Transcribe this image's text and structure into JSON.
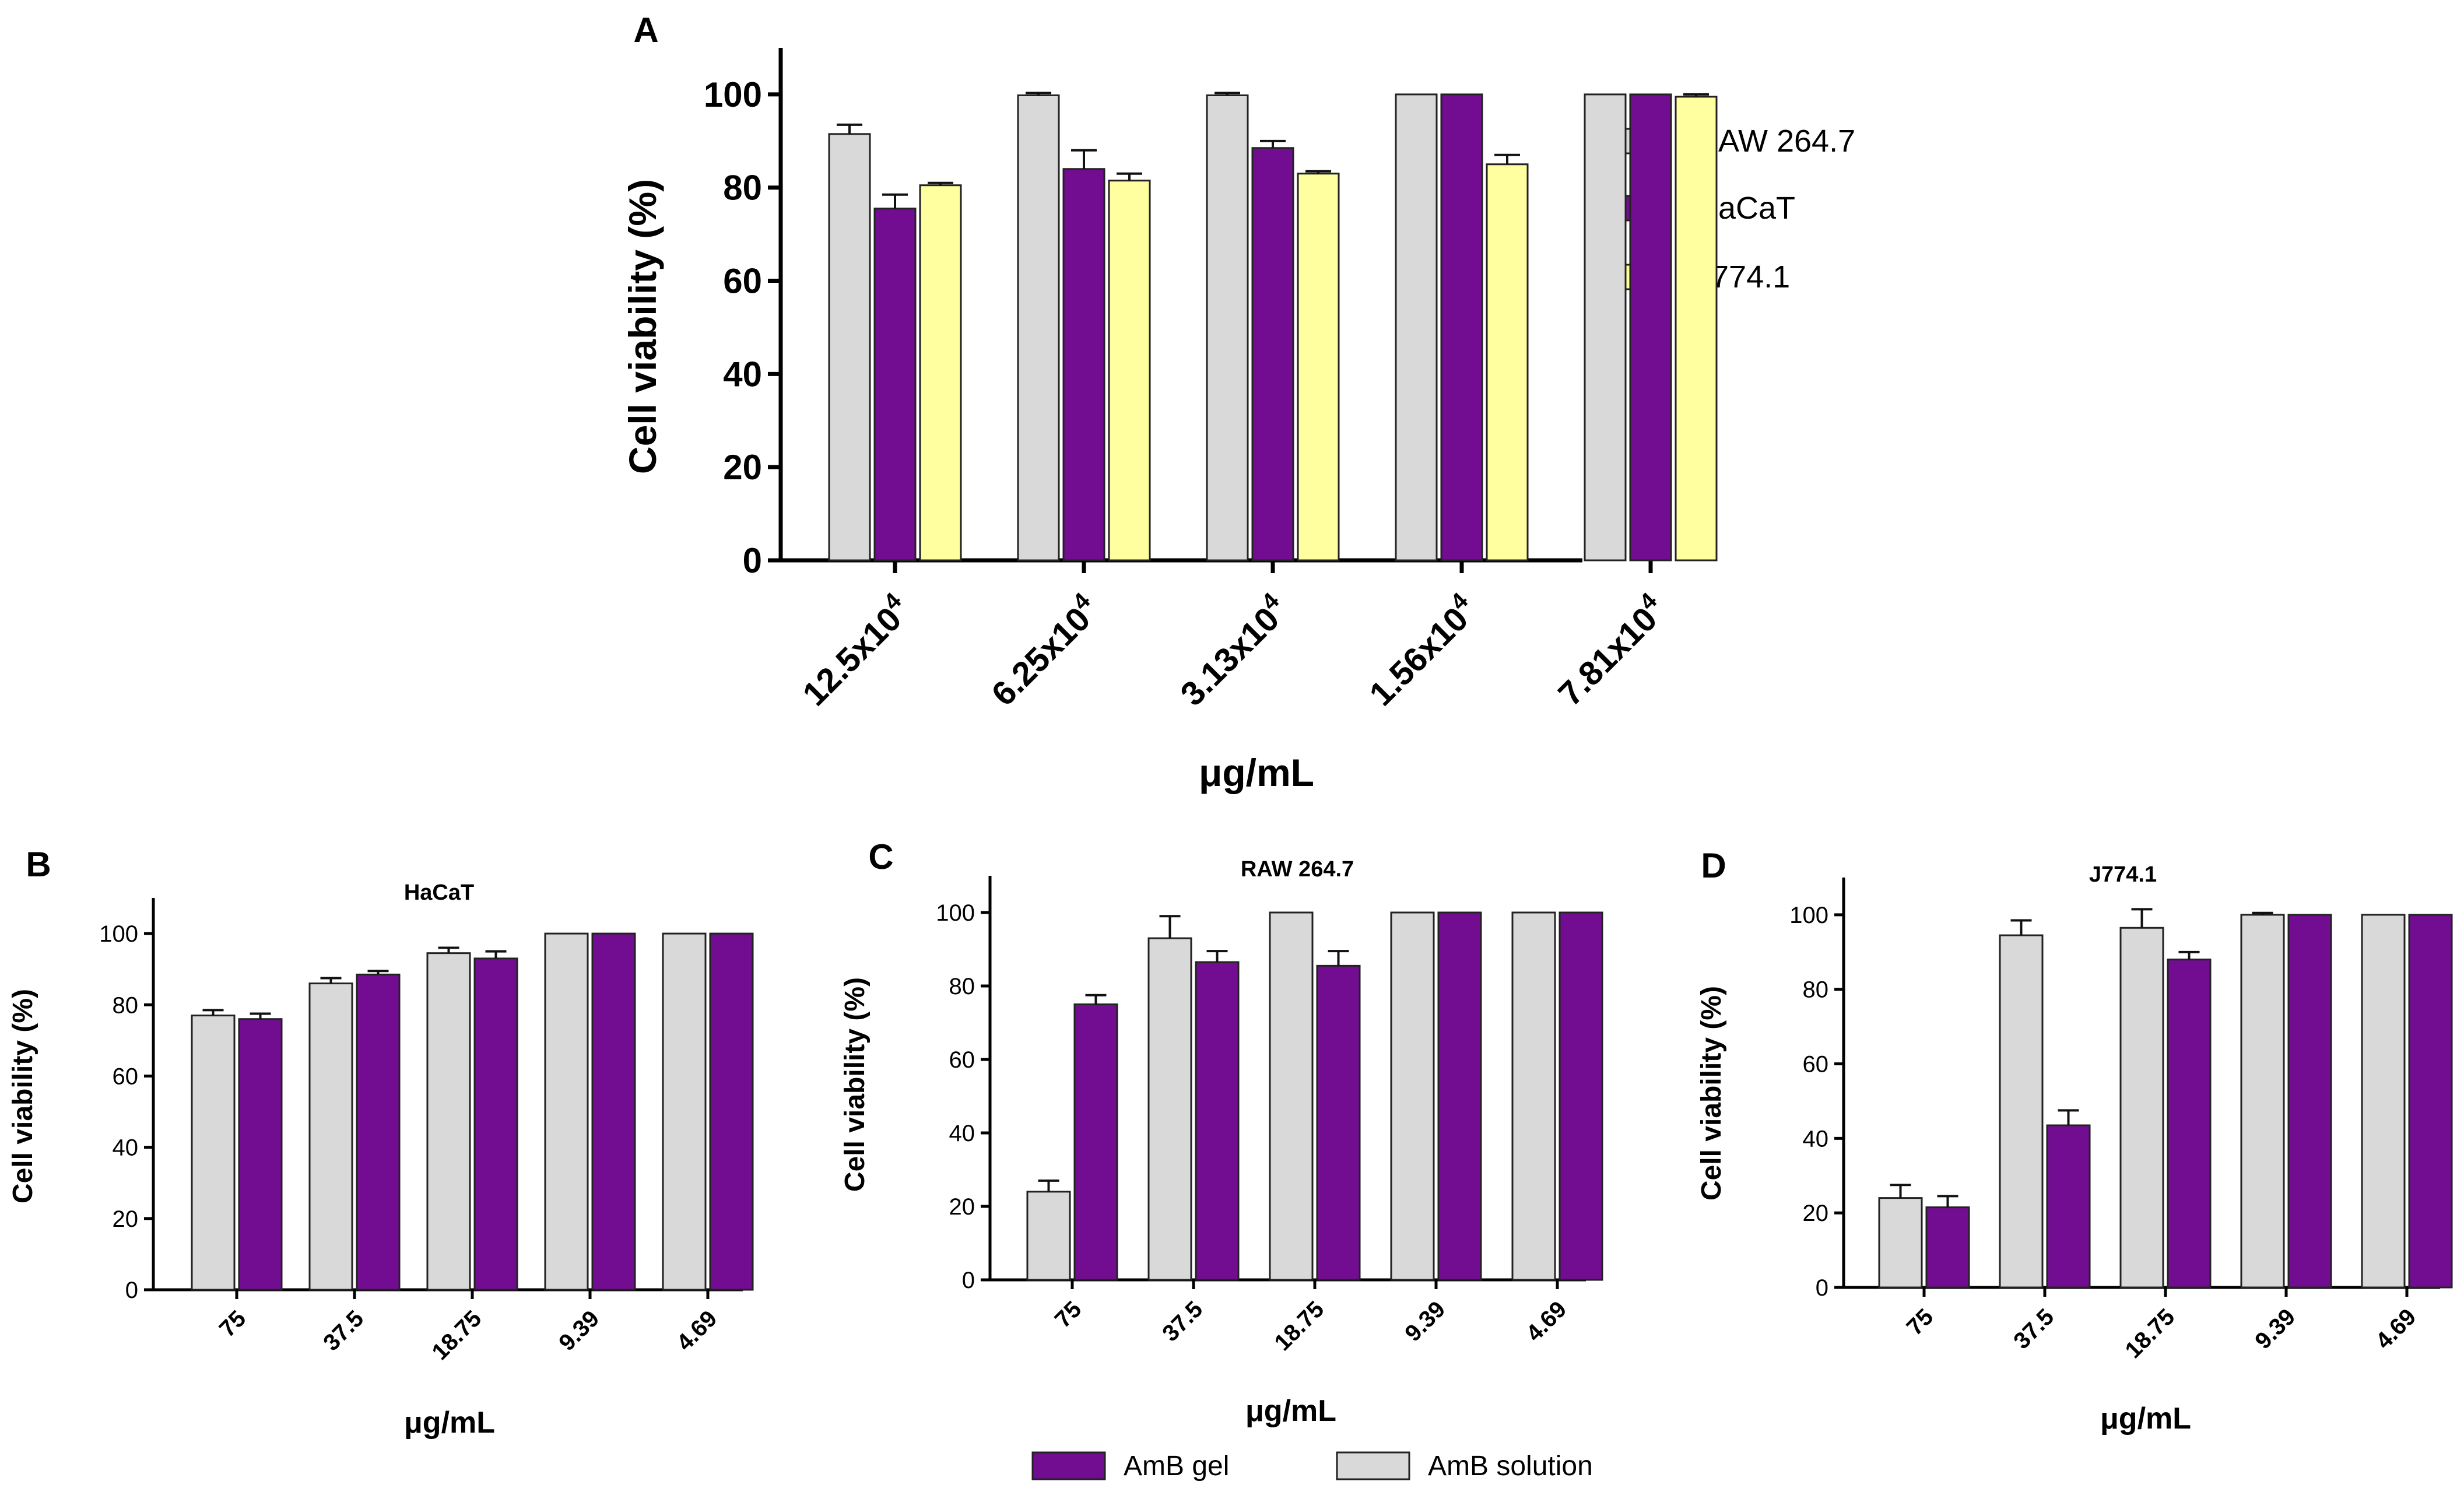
{
  "colors": {
    "raw": "#d9d9d9",
    "hacat": "#720d91",
    "j774": "#ffff9f",
    "gel": "#720d91",
    "solution": "#d9d9d9"
  },
  "panel_a": {
    "letter": "A",
    "legend": [
      "RAW 264.7",
      "HaCaT",
      "J774.1"
    ]
  },
  "bottom_legend": {
    "gel_label": "AmB gel",
    "solution_label": "AmB solution"
  },
  "chart_data": [
    {
      "id": "A",
      "type": "bar",
      "title": "",
      "xlabel": "μg/mL",
      "ylabel": "Cell viability (%)",
      "ylim": [
        0,
        110
      ],
      "yticks": [
        0,
        20,
        40,
        60,
        80,
        100
      ],
      "categories": [
        {
          "base": "12.5x10",
          "exp": "4"
        },
        {
          "base": "6.25x10",
          "exp": "4"
        },
        {
          "base": "3.13x10",
          "exp": "4"
        },
        {
          "base": "1.56x10",
          "exp": "4"
        },
        {
          "base": "7.81x10",
          "exp": "4"
        }
      ],
      "series": [
        {
          "name": "RAW 264.7",
          "values": [
            91.5,
            99.8,
            99.8,
            100,
            100
          ],
          "errors": [
            2.0,
            0.5,
            0.5,
            0,
            0
          ]
        },
        {
          "name": "HaCaT",
          "values": [
            75.5,
            84,
            88.5,
            100,
            100
          ],
          "errors": [
            3.0,
            4.0,
            1.5,
            0,
            0
          ]
        },
        {
          "name": "J774.1",
          "values": [
            80.5,
            81.5,
            83,
            85,
            99.5
          ],
          "errors": [
            0.5,
            1.5,
            0.5,
            2.0,
            0.5
          ]
        }
      ],
      "legend_position": "right"
    },
    {
      "id": "B",
      "type": "bar",
      "title": "HaCaT",
      "xlabel": "μg/mL",
      "ylabel": "Cell viability (%)",
      "ylim": [
        0,
        110
      ],
      "yticks": [
        0,
        20,
        40,
        60,
        80,
        100
      ],
      "categories": [
        "75",
        "37.5",
        "18.75",
        "9.39",
        "4.69"
      ],
      "series": [
        {
          "name": "AmB solution",
          "values": [
            77,
            86,
            94.5,
            100,
            100
          ],
          "errors": [
            1.5,
            1.5,
            1.5,
            0,
            0
          ]
        },
        {
          "name": "AmB gel",
          "values": [
            76,
            88.5,
            93,
            100,
            100
          ],
          "errors": [
            1.5,
            1.0,
            2.0,
            0,
            0
          ]
        }
      ]
    },
    {
      "id": "C",
      "type": "bar",
      "title": "RAW 264.7",
      "xlabel": "μg/mL",
      "ylabel": "Cell viability (%)",
      "ylim": [
        0,
        110
      ],
      "yticks": [
        0,
        20,
        40,
        60,
        80,
        100
      ],
      "categories": [
        "75",
        "37.5",
        "18.75",
        "9.39",
        "4.69"
      ],
      "series": [
        {
          "name": "AmB solution",
          "values": [
            24,
            93,
            100,
            100,
            100
          ],
          "errors": [
            3.0,
            6.0,
            0,
            0,
            0
          ]
        },
        {
          "name": "AmB gel",
          "values": [
            75,
            86.5,
            85.5,
            100,
            100
          ],
          "errors": [
            2.5,
            3.0,
            4.0,
            0,
            0
          ]
        }
      ]
    },
    {
      "id": "D",
      "type": "bar",
      "title": "J774.1",
      "xlabel": "μg/mL",
      "ylabel": "Cell viability (%)",
      "ylim": [
        0,
        110
      ],
      "yticks": [
        0,
        20,
        40,
        60,
        80,
        100
      ],
      "categories": [
        "75",
        "37.5",
        "18.75",
        "9.39",
        "4.69"
      ],
      "series": [
        {
          "name": "AmB solution",
          "values": [
            24,
            94.5,
            96.5,
            100,
            100
          ],
          "errors": [
            3.5,
            4.0,
            5.0,
            0.5,
            0
          ]
        },
        {
          "name": "AmB gel",
          "values": [
            21.5,
            43.5,
            88,
            100,
            100
          ],
          "errors": [
            3.0,
            4.0,
            2.0,
            0,
            0
          ]
        }
      ]
    }
  ]
}
